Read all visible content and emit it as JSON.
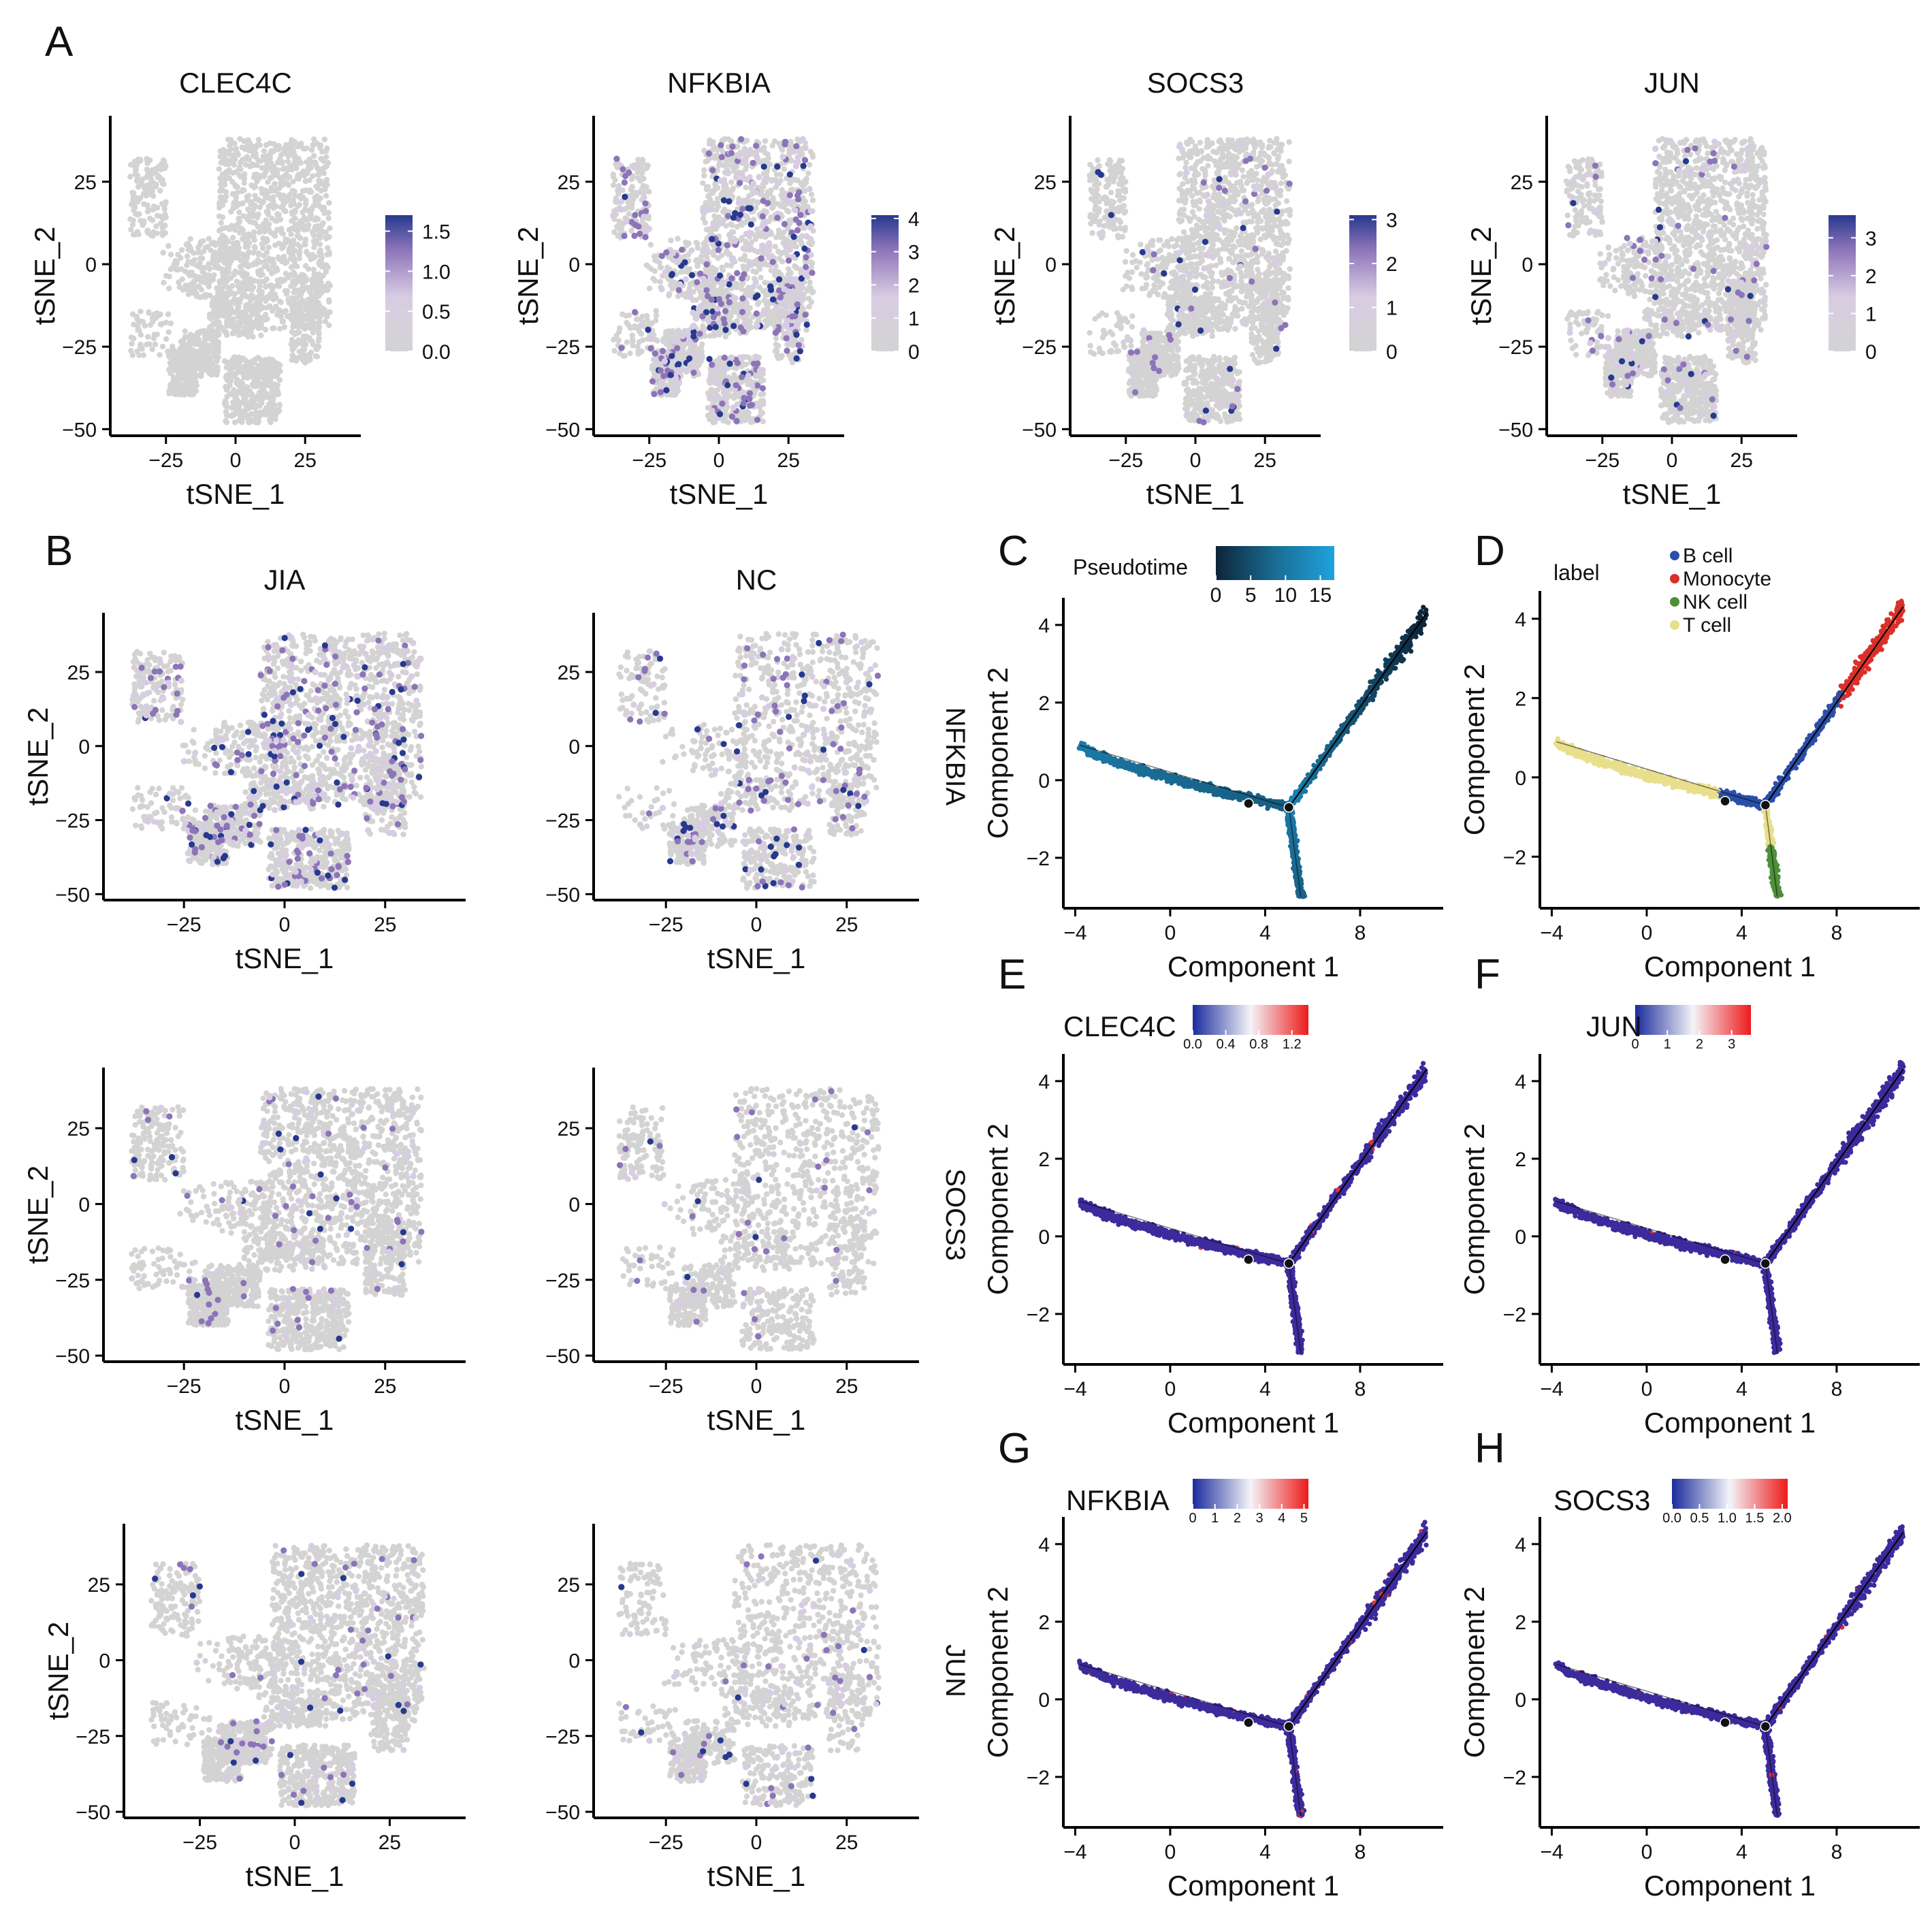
{
  "panel_labels": {
    "A": "A",
    "B": "B",
    "C": "C",
    "D": "D",
    "E": "E",
    "F": "F",
    "G": "G",
    "H": "H"
  },
  "colors": {
    "grey": "#d3d3d3",
    "purple_low": "#d8cce3",
    "purple_mid": "#8d74b9",
    "purple_high": "#26398f",
    "pseudo_dark": "#0e2438",
    "pseudo_mid": "#1a6c94",
    "pseudo_light": "#1fa3dd",
    "traj_blue": "#3b2b9c",
    "traj_red": "#e53030",
    "b_cell": "#2a4fa8",
    "monocyte": "#d9302a",
    "nk_cell": "#4e8f3a",
    "t_cell": "#e8df8d"
  },
  "chart_data": [
    {
      "id": "A1",
      "type": "scatter",
      "title": "CLEC4C",
      "xlabel": "tSNE_1",
      "ylabel": "tSNE_2",
      "xticks": [
        "−25",
        "0",
        "25"
      ],
      "yticks": [
        "−50",
        "−25",
        "0",
        "25"
      ],
      "xlim": [
        -45,
        45
      ],
      "ylim": [
        -52,
        45
      ],
      "colorbar": {
        "ticks": [
          "0.0",
          "0.5",
          "1.0",
          "1.5"
        ],
        "range": [
          0,
          1.7
        ]
      },
      "expr_density": 0.0
    },
    {
      "id": "A2",
      "type": "scatter",
      "title": "NFKBIA",
      "xlabel": "tSNE_1",
      "ylabel": "tSNE_2",
      "xticks": [
        "−25",
        "0",
        "25"
      ],
      "yticks": [
        "−50",
        "−25",
        "0",
        "25"
      ],
      "xlim": [
        -45,
        45
      ],
      "ylim": [
        -52,
        45
      ],
      "colorbar": {
        "ticks": [
          "0",
          "1",
          "2",
          "3",
          "4"
        ],
        "range": [
          0,
          4.1
        ]
      },
      "expr_density": 0.18
    },
    {
      "id": "A3",
      "type": "scatter",
      "title": "SOCS3",
      "xlabel": "tSNE_1",
      "ylabel": "tSNE_2",
      "xticks": [
        "−25",
        "0",
        "25"
      ],
      "yticks": [
        "−50",
        "−25",
        "0",
        "25"
      ],
      "xlim": [
        -45,
        45
      ],
      "ylim": [
        -52,
        45
      ],
      "colorbar": {
        "ticks": [
          "0",
          "1",
          "2",
          "3"
        ],
        "range": [
          0,
          3.1
        ]
      },
      "expr_density": 0.04
    },
    {
      "id": "A4",
      "type": "scatter",
      "title": "JUN",
      "xlabel": "tSNE_1",
      "ylabel": "tSNE_2",
      "xticks": [
        "−25",
        "0",
        "25"
      ],
      "yticks": [
        "−50",
        "−25",
        "0",
        "25"
      ],
      "xlim": [
        -45,
        45
      ],
      "ylim": [
        -52,
        45
      ],
      "colorbar": {
        "ticks": [
          "0",
          "1",
          "2",
          "3"
        ],
        "range": [
          0,
          3.6
        ]
      },
      "expr_density": 0.06
    },
    {
      "id": "B11",
      "type": "scatter",
      "title": "JIA",
      "xlabel": "tSNE_1",
      "ylabel": "tSNE_2",
      "xticks": [
        "−25",
        "0",
        "25"
      ],
      "yticks": [
        "−50",
        "−25",
        "0",
        "25"
      ],
      "xlim": [
        -45,
        45
      ],
      "ylim": [
        -52,
        45
      ],
      "expr_density": 0.16
    },
    {
      "id": "B12",
      "type": "scatter",
      "title": "NC",
      "xlabel": "tSNE_1",
      "ylabel": "",
      "xticks": [
        "−25",
        "0",
        "25"
      ],
      "yticks": [
        "−50",
        "−25",
        "0",
        "25"
      ],
      "xlim": [
        -45,
        45
      ],
      "ylim": [
        -52,
        45
      ],
      "row_label": "NFKBIA",
      "expr_density": 0.14,
      "sparse": true
    },
    {
      "id": "B21",
      "type": "scatter",
      "title": "",
      "xlabel": "tSNE_1",
      "ylabel": "tSNE_2",
      "xticks": [
        "−25",
        "0",
        "25"
      ],
      "yticks": [
        "−50",
        "−25",
        "0",
        "25"
      ],
      "xlim": [
        -45,
        45
      ],
      "ylim": [
        -52,
        45
      ],
      "expr_density": 0.05
    },
    {
      "id": "B22",
      "type": "scatter",
      "title": "",
      "xlabel": "tSNE_1",
      "ylabel": "",
      "xticks": [
        "−25",
        "0",
        "25"
      ],
      "yticks": [
        "−50",
        "−25",
        "0",
        "25"
      ],
      "xlim": [
        -45,
        45
      ],
      "ylim": [
        -52,
        45
      ],
      "row_label": "SOCS3",
      "expr_density": 0.04,
      "sparse": true
    },
    {
      "id": "B31",
      "type": "scatter",
      "title": "",
      "xlabel": "tSNE_1",
      "ylabel": "tSNE_2",
      "xticks": [
        "−25",
        "0",
        "25"
      ],
      "yticks": [
        "−50",
        "−25",
        "0",
        "25"
      ],
      "xlim": [
        -45,
        45
      ],
      "ylim": [
        -52,
        45
      ],
      "expr_density": 0.05
    },
    {
      "id": "B32",
      "type": "scatter",
      "title": "",
      "xlabel": "tSNE_1",
      "ylabel": "",
      "xticks": [
        "−25",
        "0",
        "25"
      ],
      "yticks": [
        "−50",
        "−25",
        "0",
        "25"
      ],
      "xlim": [
        -45,
        45
      ],
      "ylim": [
        -52,
        45
      ],
      "row_label": "JUN",
      "expr_density": 0.06,
      "sparse": true
    },
    {
      "id": "C",
      "type": "scatter",
      "mode": "pseudotime",
      "xlabel": "Component 1",
      "ylabel": "Component 2",
      "xticks": [
        "−4",
        "0",
        "4",
        "8"
      ],
      "yticks": [
        "−2",
        "0",
        "2",
        "4"
      ],
      "xlim": [
        -4.5,
        11.5
      ],
      "ylim": [
        -3.3,
        4.7
      ],
      "colorbar": {
        "title": "Pseudotime",
        "ticks": [
          "0",
          "5",
          "10",
          "15"
        ],
        "range": [
          0,
          17
        ]
      }
    },
    {
      "id": "D",
      "type": "scatter",
      "mode": "label",
      "xlabel": "Component 1",
      "ylabel": "Component 2",
      "xticks": [
        "−4",
        "0",
        "4",
        "8"
      ],
      "yticks": [
        "−2",
        "0",
        "2",
        "4"
      ],
      "xlim": [
        -4.5,
        11.5
      ],
      "ylim": [
        -3.3,
        4.7
      ],
      "legend": {
        "title": "label",
        "position": "top",
        "entries": [
          "B cell",
          "Monocyte",
          "NK cell",
          "T cell"
        ]
      }
    },
    {
      "id": "E",
      "type": "scatter",
      "mode": "expr",
      "xlabel": "Component 1",
      "ylabel": "Component 2",
      "xticks": [
        "−4",
        "0",
        "4",
        "8"
      ],
      "yticks": [
        "−2",
        "0",
        "2",
        "4"
      ],
      "xlim": [
        -4.5,
        11.5
      ],
      "ylim": [
        -3.3,
        4.7
      ],
      "colorbar": {
        "title": "CLEC4C",
        "ticks": [
          "0.0",
          "0.4",
          "0.8",
          "1.2"
        ],
        "range": [
          0,
          1.4
        ]
      },
      "red_fraction": 0.01
    },
    {
      "id": "F",
      "type": "scatter",
      "mode": "expr",
      "xlabel": "Component 1",
      "ylabel": "Component 2",
      "xticks": [
        "−4",
        "0",
        "4",
        "8"
      ],
      "yticks": [
        "−2",
        "0",
        "2",
        "4"
      ],
      "xlim": [
        -4.5,
        11.5
      ],
      "ylim": [
        -3.3,
        4.7
      ],
      "colorbar": {
        "title": "JUN",
        "ticks": [
          "0",
          "1",
          "2",
          "3"
        ],
        "range": [
          0,
          3.6
        ]
      },
      "red_fraction": 0.005
    },
    {
      "id": "G",
      "type": "scatter",
      "mode": "expr",
      "xlabel": "Component 1",
      "ylabel": "Component 2",
      "xticks": [
        "−4",
        "0",
        "4",
        "8"
      ],
      "yticks": [
        "−2",
        "0",
        "2",
        "4"
      ],
      "xlim": [
        -4.5,
        11.5
      ],
      "ylim": [
        -3.3,
        4.7
      ],
      "colorbar": {
        "title": "NFKBIA",
        "ticks": [
          "0",
          "1",
          "2",
          "3",
          "4",
          "5"
        ],
        "range": [
          0,
          5.2
        ]
      },
      "red_fraction": 0.03
    },
    {
      "id": "H",
      "type": "scatter",
      "mode": "expr",
      "xlabel": "Component 1",
      "ylabel": "Component 2",
      "xticks": [
        "−4",
        "0",
        "4",
        "8"
      ],
      "yticks": [
        "−2",
        "0",
        "2",
        "4"
      ],
      "xlim": [
        -4.5,
        11.5
      ],
      "ylim": [
        -3.3,
        4.7
      ],
      "colorbar": {
        "title": "SOCS3",
        "ticks": [
          "0.0",
          "0.5",
          "1.0",
          "1.5",
          "2.0"
        ],
        "range": [
          0,
          2.1
        ]
      },
      "red_fraction": 0.008
    }
  ]
}
